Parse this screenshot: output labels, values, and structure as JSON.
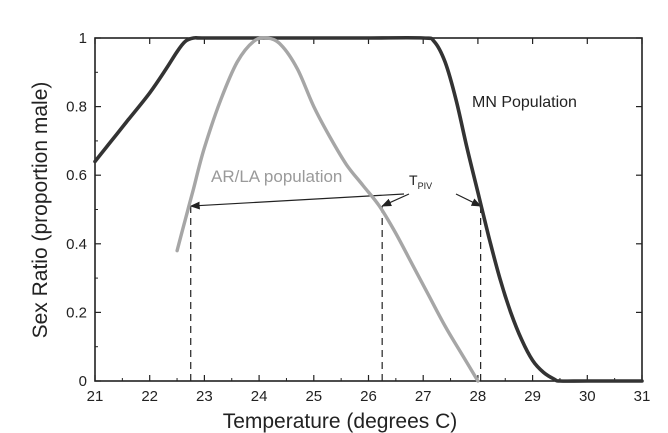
{
  "chart_data": {
    "type": "line",
    "title": "",
    "xlabel": "Temperature (degrees C)",
    "ylabel": "Sex Ratio (proportion male)",
    "xlim": [
      21,
      31
    ],
    "ylim": [
      0,
      1
    ],
    "x_ticks": [
      21,
      22,
      23,
      24,
      25,
      26,
      27,
      28,
      29,
      30,
      31
    ],
    "y_ticks": [
      0,
      0.2,
      0.4,
      0.6,
      0.8,
      1
    ],
    "y_tick_labels": [
      "0",
      "0.2",
      "0.4",
      "0.6",
      "0.8",
      "1"
    ],
    "grid": false,
    "legend": "none",
    "series": [
      {
        "name": "MN Population",
        "color": "#333333",
        "x": [
          21.0,
          21.3,
          21.6,
          22.0,
          22.3,
          22.5,
          22.65,
          22.8,
          23.0,
          24.0,
          25.0,
          26.0,
          27.0,
          27.2,
          27.4,
          27.6,
          27.8,
          28.0,
          28.2,
          28.4,
          28.6,
          28.8,
          29.0,
          29.2,
          29.4,
          29.5,
          30.0,
          31.0
        ],
        "y": [
          0.64,
          0.7,
          0.76,
          0.84,
          0.91,
          0.96,
          0.99,
          1.0,
          1.0,
          1.0,
          1.0,
          1.0,
          1.0,
          0.99,
          0.93,
          0.82,
          0.68,
          0.55,
          0.42,
          0.3,
          0.2,
          0.12,
          0.06,
          0.025,
          0.005,
          0.0,
          0.0,
          0.0
        ]
      },
      {
        "name": "AR/LA population",
        "color": "#a6a6a6",
        "x": [
          22.5,
          22.6,
          22.7,
          22.8,
          23.0,
          23.3,
          23.6,
          23.9,
          24.15,
          24.4,
          24.7,
          25.0,
          25.3,
          25.6,
          25.9,
          26.2,
          26.5,
          26.8,
          27.1,
          27.4,
          27.7,
          28.0
        ],
        "y": [
          0.38,
          0.44,
          0.5,
          0.56,
          0.68,
          0.82,
          0.93,
          0.99,
          1.0,
          0.98,
          0.91,
          0.8,
          0.71,
          0.63,
          0.57,
          0.51,
          0.43,
          0.34,
          0.25,
          0.16,
          0.08,
          0.0
        ]
      }
    ],
    "pivotal_temperatures": [
      {
        "x": 22.75,
        "y": 0.51
      },
      {
        "x": 26.25,
        "y": 0.51
      },
      {
        "x": 28.05,
        "y": 0.51
      }
    ],
    "annotations": {
      "mn_label": "MN Population",
      "arla_label": "AR/LA population",
      "tpiv_main": "T",
      "tpiv_sub": "PIV"
    }
  }
}
